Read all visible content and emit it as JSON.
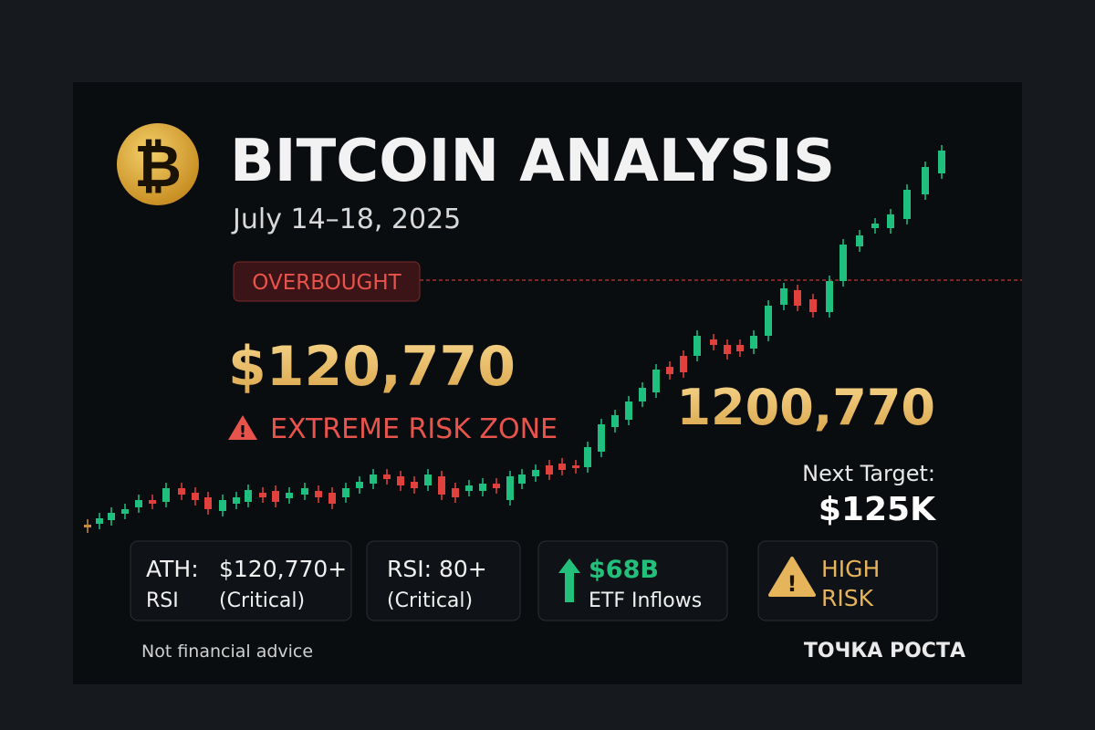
{
  "header": {
    "title": "BITCOIN ANALYSIS",
    "date": "July 14–18, 2025"
  },
  "badge": "OVERBOUGHT",
  "price": "$120,770",
  "warning": "EXTREME RISK ZONE",
  "target_price": "1200,770",
  "next_target": {
    "label": "Next Target:",
    "value": "$125K"
  },
  "cards": [
    {
      "lines": [
        "ATH:",
        "$120,770+",
        "RSI",
        "(Critical)"
      ]
    },
    {
      "lines": [
        "RSI: 80+",
        "(Critical)"
      ]
    },
    {
      "lines": [
        "$68B",
        "ETF Inflows"
      ]
    },
    {
      "lines": [
        "HIGH",
        "RISK"
      ]
    }
  ],
  "disclaimer": "Not financial advice",
  "brand": "ТОЧКА РОСТА"
}
